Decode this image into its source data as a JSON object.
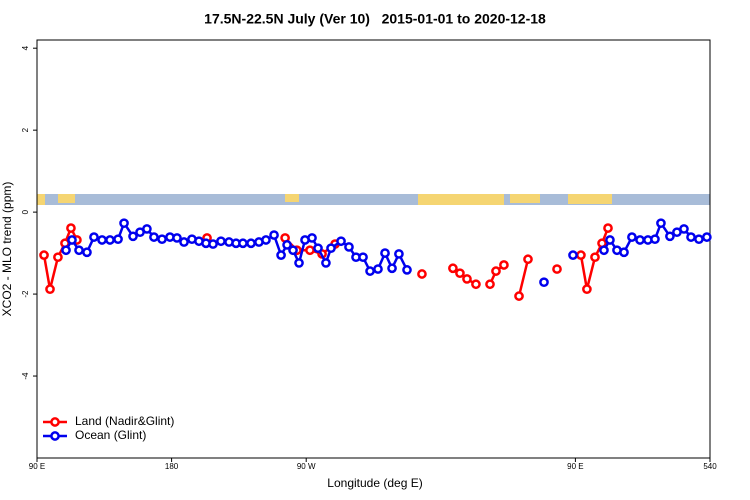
{
  "chart_data": {
    "type": "line",
    "title": "17.5N-22.5N July (Ver 10)   2015-01-01 to 2020-12-18",
    "xlabel": "Longitude (deg E)",
    "ylabel": "XCO2 - MLO trend (ppm)",
    "xlim": [
      90,
      540
    ],
    "ylim": [
      -6,
      4.2
    ],
    "xticks": [
      {
        "value": 90,
        "label": "90 E"
      },
      180,
      {
        "value": 270,
        "label": "90 W"
      },
      {
        "value": 450,
        "label": "90 E"
      },
      540
    ],
    "yticks": [
      -4,
      -2,
      0,
      2,
      4
    ],
    "legend": "bottom-left",
    "series": [
      {
        "name": "Land (Nadir&Glint)",
        "color": "#ff0000",
        "x": [
          94.7,
          98.7,
          104.0,
          108.7,
          112.7,
          116.7,
          160,
          203.7,
          230,
          255.9,
          263.8,
          272.5,
          280.6,
          289.3,
          318,
          347.4,
          360,
          368.1,
          372.8,
          377.5,
          383.5,
          388,
          392.9,
          396.9,
          402.2,
          408,
          412.3,
          418.3,
          428,
          437.7,
          446,
          453.7,
          457.7,
          463.1,
          467.8,
          471.8
        ],
        "values": [
          -1.05,
          -1.88,
          -1.1,
          -0.76,
          -0.39,
          -0.68,
          null,
          -0.63,
          null,
          -0.63,
          -0.93,
          -0.93,
          -1.02,
          -0.78,
          null,
          -1.51,
          null,
          -1.37,
          -1.49,
          -1.63,
          -1.76,
          null,
          -1.76,
          -1.44,
          -1.29,
          null,
          -2.05,
          -1.15,
          null,
          -1.39,
          null,
          -1.05,
          -1.88,
          -1.1,
          -0.76,
          -0.39
        ]
      },
      {
        "name": "Ocean (Glint)",
        "color": "#0000ee",
        "x": [
          109.4,
          113.4,
          118.1,
          123.4,
          128.1,
          133.5,
          138.8,
          144.2,
          148.2,
          154.2,
          158.9,
          163.5,
          168.2,
          173.6,
          178.9,
          183.6,
          188.3,
          193.6,
          198.3,
          203.0,
          207.7,
          213.0,
          218.4,
          223.1,
          227.7,
          233.1,
          238.4,
          243.1,
          248.5,
          253.2,
          257.2,
          261.2,
          265.2,
          269.2,
          273.9,
          277.9,
          283.2,
          286.6,
          293.3,
          298.6,
          303.3,
          308.0,
          312.7,
          318.0,
          322.7,
          327.4,
          332.0,
          337.4,
          400,
          429.0,
          440,
          448.4,
          458,
          469.1,
          473.1,
          477.8,
          482.5,
          487.8,
          493.2,
          498.5,
          503.2,
          507.2,
          513.2,
          517.9,
          522.6,
          527.3,
          532.6,
          537.9
        ],
        "values": [
          -0.93,
          -0.68,
          -0.93,
          -0.98,
          -0.61,
          -0.68,
          -0.68,
          -0.66,
          -0.27,
          -0.59,
          -0.49,
          -0.41,
          -0.61,
          -0.66,
          -0.61,
          -0.63,
          -0.73,
          -0.66,
          -0.71,
          -0.76,
          -0.78,
          -0.71,
          -0.73,
          -0.76,
          -0.76,
          -0.76,
          -0.73,
          -0.68,
          -0.56,
          -1.05,
          -0.8,
          -0.93,
          -1.24,
          -0.68,
          -0.63,
          -0.88,
          -1.24,
          -0.88,
          -0.71,
          -0.85,
          -1.1,
          -1.1,
          -1.44,
          -1.39,
          -1.0,
          -1.37,
          -1.02,
          -1.41,
          null,
          -1.71,
          null,
          -1.05,
          null,
          -0.93,
          -0.68,
          -0.93,
          -0.98,
          -0.61,
          -0.68,
          -0.68,
          -0.66,
          -0.27,
          -0.59,
          -0.49,
          -0.41,
          -0.61,
          -0.66,
          -0.61
        ]
      }
    ]
  }
}
